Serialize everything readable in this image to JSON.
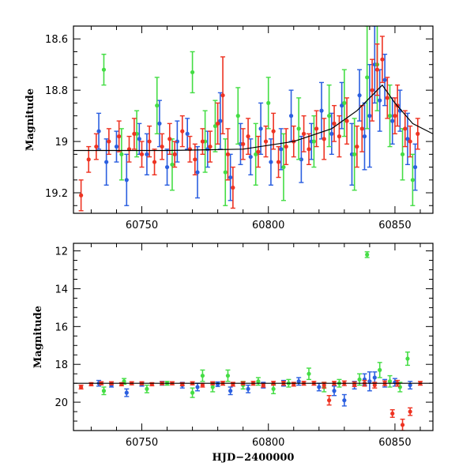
{
  "chart_data": [
    {
      "type": "scatter",
      "panel": "top",
      "xlabel": "",
      "ylabel": "Magnitude",
      "xlim": [
        60723,
        60865
      ],
      "ylim": [
        19.28,
        18.55
      ],
      "y_inverted": true,
      "x_ticks": [
        60750,
        60800,
        60850
      ],
      "y_ticks": [
        18.6,
        18.8,
        19.0,
        19.2
      ],
      "y_tick_labels": [
        "18.6",
        "18.8",
        "19",
        "19.2"
      ],
      "grid": false,
      "legend": "none",
      "model_curve": {
        "color": "#000000",
        "x": [
          60723,
          60760,
          60790,
          60810,
          60825,
          60835,
          60840,
          60845,
          60850,
          60857,
          60865
        ],
        "y": [
          19.035,
          19.035,
          19.03,
          19.0,
          18.95,
          18.88,
          18.83,
          18.78,
          18.85,
          18.93,
          18.97
        ]
      },
      "series": [
        {
          "color": "#2b5fe0",
          "x": [
            60733,
            60736,
            60740,
            60744,
            60749,
            60752,
            60757,
            60760,
            60764,
            60768,
            60772,
            60776,
            60781,
            60785,
            60789,
            60793,
            60797,
            60801,
            60805,
            60809,
            60813,
            60817,
            60821,
            60825,
            60829,
            60833,
            60836,
            60838,
            60840,
            60842,
            60844,
            60846,
            60849,
            60852,
            60855,
            60858
          ],
          "y": [
            18.96,
            19.08,
            19.02,
            19.15,
            18.99,
            19.05,
            18.93,
            19.1,
            19.0,
            18.97,
            19.12,
            19.03,
            18.92,
            19.14,
            19.01,
            19.06,
            18.95,
            19.08,
            19.03,
            18.9,
            19.07,
            19.0,
            18.88,
            18.97,
            18.86,
            19.05,
            18.82,
            18.98,
            18.9,
            18.7,
            18.84,
            18.76,
            18.92,
            18.88,
            18.99,
            19.1
          ],
          "err": [
            0.07,
            0.09,
            0.06,
            0.1,
            0.06,
            0.08,
            0.09,
            0.07,
            0.08,
            0.06,
            0.1,
            0.07,
            0.11,
            0.09,
            0.08,
            0.07,
            0.1,
            0.09,
            0.08,
            0.1,
            0.09,
            0.07,
            0.11,
            0.08,
            0.09,
            0.12,
            0.1,
            0.13,
            0.2,
            0.15,
            0.12,
            0.1,
            0.09,
            0.08,
            0.1,
            0.09
          ]
        },
        {
          "color": "#44dd44",
          "x": [
            60735,
            60742,
            60748,
            60756,
            60762,
            60770,
            60775,
            60779,
            60783,
            60788,
            60795,
            60800,
            60806,
            60812,
            60818,
            60824,
            60830,
            60834,
            60839,
            60843,
            60848,
            60853,
            60857
          ],
          "y": [
            18.72,
            19.05,
            18.97,
            18.86,
            19.09,
            18.73,
            19.0,
            18.94,
            19.12,
            18.9,
            19.05,
            18.85,
            19.1,
            18.95,
            19.0,
            18.9,
            18.85,
            19.05,
            18.75,
            18.7,
            18.9,
            19.05,
            19.15
          ],
          "err": [
            0.06,
            0.1,
            0.09,
            0.11,
            0.1,
            0.08,
            0.12,
            0.1,
            0.13,
            0.11,
            0.12,
            0.1,
            0.13,
            0.12,
            0.1,
            0.12,
            0.13,
            0.14,
            0.2,
            0.18,
            0.12,
            0.1,
            0.1
          ]
        },
        {
          "color": "#ee3322",
          "x": [
            60726,
            60729,
            60732,
            60737,
            60741,
            60745,
            60747,
            60750,
            60753,
            60755,
            60758,
            60761,
            60763,
            60766,
            60769,
            60771,
            60774,
            60777,
            60780,
            60782,
            60784,
            60786,
            60790,
            60792,
            60796,
            60799,
            60802,
            60804,
            60807,
            60810,
            60814,
            60816,
            60819,
            60822,
            60826,
            60828,
            60831,
            60835,
            60837,
            60841,
            60843,
            60845,
            60847,
            60850,
            60851,
            60854,
            60856,
            60859
          ],
          "y": [
            19.21,
            19.07,
            19.02,
            19.0,
            18.98,
            19.03,
            18.97,
            19.05,
            19.0,
            19.08,
            19.02,
            18.99,
            19.05,
            18.96,
            19.03,
            19.07,
            19.0,
            19.02,
            18.93,
            18.82,
            19.05,
            19.18,
            19.01,
            18.98,
            19.04,
            19.0,
            18.96,
            19.08,
            19.02,
            19.0,
            18.97,
            19.03,
            18.95,
            18.99,
            18.93,
            18.98,
            18.92,
            19.02,
            18.95,
            18.8,
            18.72,
            18.68,
            18.83,
            18.9,
            18.86,
            18.95,
            19.0,
            18.97
          ],
          "err": [
            0.06,
            0.05,
            0.05,
            0.05,
            0.06,
            0.05,
            0.06,
            0.05,
            0.06,
            0.05,
            0.05,
            0.06,
            0.05,
            0.06,
            0.05,
            0.06,
            0.05,
            0.06,
            0.08,
            0.15,
            0.1,
            0.08,
            0.06,
            0.07,
            0.06,
            0.06,
            0.07,
            0.06,
            0.07,
            0.06,
            0.07,
            0.06,
            0.07,
            0.08,
            0.07,
            0.08,
            0.09,
            0.08,
            0.09,
            0.12,
            0.1,
            0.09,
            0.08,
            0.07,
            0.08,
            0.07,
            0.06,
            0.06
          ]
        }
      ]
    },
    {
      "type": "scatter",
      "panel": "bottom",
      "xlabel": "HJD−2400000",
      "ylabel": "Magnitude",
      "xlim": [
        60723,
        60865
      ],
      "ylim": [
        21.5,
        11.6
      ],
      "y_inverted": true,
      "x_ticks": [
        60750,
        60800,
        60850
      ],
      "y_ticks": [
        12,
        14,
        16,
        18,
        20
      ],
      "y_tick_labels": [
        "12",
        "14",
        "16",
        "18",
        "20"
      ],
      "grid": false,
      "legend": "none",
      "model_curve": {
        "color": "#000000",
        "x": [
          60723,
          60865
        ],
        "y": [
          19.0,
          19.0
        ]
      },
      "series": [
        {
          "color": "#2b5fe0",
          "x": [
            60733,
            60738,
            60744,
            60750,
            60758,
            60766,
            60772,
            60780,
            60785,
            60792,
            60798,
            60806,
            60812,
            60820,
            60826,
            60830,
            60834,
            60838,
            60840,
            60842,
            60846,
            60850,
            60856
          ],
          "y": [
            19.0,
            19.1,
            19.5,
            19.05,
            19.0,
            19.1,
            19.2,
            19.05,
            19.4,
            19.3,
            19.1,
            19.0,
            18.9,
            19.2,
            19.4,
            19.9,
            19.1,
            18.8,
            18.9,
            18.7,
            19.0,
            18.95,
            19.1
          ],
          "err": [
            0.15,
            0.1,
            0.2,
            0.1,
            0.1,
            0.15,
            0.2,
            0.12,
            0.2,
            0.2,
            0.15,
            0.15,
            0.2,
            0.2,
            0.25,
            0.3,
            0.2,
            0.3,
            0.5,
            0.3,
            0.2,
            0.2,
            0.2
          ]
        },
        {
          "color": "#44dd44",
          "x": [
            60735,
            60743,
            60752,
            60760,
            60770,
            60774,
            60778,
            60784,
            60790,
            60796,
            60802,
            60808,
            60816,
            60822,
            60828,
            60836,
            60839,
            60844,
            60848,
            60852,
            60855
          ],
          "y": [
            19.4,
            18.9,
            19.3,
            19.0,
            19.5,
            18.6,
            19.2,
            18.6,
            19.1,
            18.9,
            19.3,
            19.0,
            18.5,
            19.2,
            19.0,
            18.8,
            12.2,
            18.3,
            18.9,
            19.2,
            17.7
          ],
          "err": [
            0.2,
            0.15,
            0.2,
            0.1,
            0.25,
            0.3,
            0.25,
            0.3,
            0.2,
            0.2,
            0.25,
            0.2,
            0.3,
            0.25,
            0.2,
            0.3,
            0.15,
            0.4,
            0.3,
            0.25,
            0.35
          ]
        },
        {
          "color": "#ee3322",
          "x": [
            60726,
            60730,
            60734,
            60738,
            60742,
            60746,
            60750,
            60754,
            60758,
            60762,
            60766,
            60770,
            60774,
            60778,
            60782,
            60786,
            60790,
            60794,
            60798,
            60802,
            60806,
            60810,
            60814,
            60818,
            60822,
            60824,
            60826,
            60830,
            60834,
            60838,
            60842,
            60846,
            60849,
            60851,
            60853,
            60856,
            60860
          ],
          "y": [
            19.2,
            19.05,
            19.0,
            19.0,
            19.05,
            19.0,
            19.0,
            19.05,
            19.0,
            19.0,
            19.05,
            19.0,
            19.1,
            19.0,
            19.0,
            19.05,
            19.0,
            19.0,
            19.1,
            19.0,
            19.0,
            19.05,
            19.0,
            19.0,
            19.1,
            19.9,
            19.0,
            19.0,
            19.05,
            19.0,
            19.1,
            19.0,
            20.6,
            19.0,
            21.2,
            20.5,
            19.0
          ],
          "err": [
            0.1,
            0.08,
            0.08,
            0.08,
            0.08,
            0.08,
            0.08,
            0.08,
            0.08,
            0.08,
            0.08,
            0.08,
            0.1,
            0.08,
            0.1,
            0.1,
            0.08,
            0.1,
            0.1,
            0.1,
            0.1,
            0.1,
            0.1,
            0.1,
            0.15,
            0.25,
            0.1,
            0.12,
            0.12,
            0.15,
            0.15,
            0.12,
            0.2,
            0.15,
            0.3,
            0.2,
            0.1
          ]
        }
      ]
    }
  ]
}
